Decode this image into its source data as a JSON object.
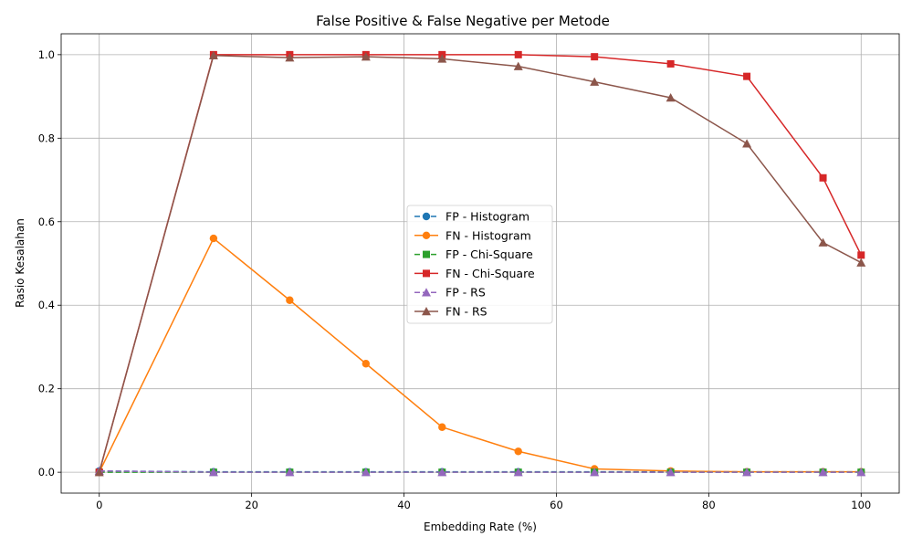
{
  "chart_data": {
    "type": "line",
    "title": "False Positive & False Negative per Metode",
    "xlabel": "Embedding Rate (%)",
    "ylabel": "Rasio Kesalahan",
    "xlim": [
      -5,
      105
    ],
    "ylim": [
      -0.05,
      1.05
    ],
    "xticks": [
      0,
      20,
      40,
      60,
      80,
      100
    ],
    "yticks": [
      0.0,
      0.2,
      0.4,
      0.6,
      0.8,
      1.0
    ],
    "xtick_labels": [
      "0",
      "20",
      "40",
      "60",
      "80",
      "100"
    ],
    "ytick_labels": [
      "0.0",
      "0.2",
      "0.4",
      "0.6",
      "0.8",
      "1.0"
    ],
    "grid": true,
    "legend_position": "center-right",
    "x": [
      0,
      15,
      25,
      35,
      45,
      55,
      65,
      75,
      85,
      95,
      100
    ],
    "series": [
      {
        "name": "FP - Histogram",
        "color": "#1f77b4",
        "marker": "circle",
        "dashed": true,
        "values": [
          0.003,
          0.001,
          0.001,
          0.001,
          0.001,
          0.001,
          0.001,
          0.001,
          0.001,
          0.001,
          0.001
        ]
      },
      {
        "name": "FN - Histogram",
        "color": "#ff7f0e",
        "marker": "circle",
        "dashed": false,
        "values": [
          0.0,
          0.56,
          0.412,
          0.26,
          0.108,
          0.05,
          0.008,
          0.003,
          0.001,
          0.001,
          0.001
        ]
      },
      {
        "name": "FP - Chi-Square",
        "color": "#2ca02c",
        "marker": "square",
        "dashed": true,
        "values": [
          0.0,
          0.0,
          0.0,
          0.0,
          0.0,
          0.0,
          0.0,
          0.0,
          0.0,
          0.0,
          0.0
        ]
      },
      {
        "name": "FN - Chi-Square",
        "color": "#d62728",
        "marker": "square",
        "dashed": false,
        "values": [
          0.0,
          1.0,
          1.0,
          1.0,
          1.0,
          1.0,
          0.995,
          0.978,
          0.948,
          0.705,
          0.52
        ]
      },
      {
        "name": "FP - RS",
        "color": "#9467bd",
        "marker": "triangle",
        "dashed": true,
        "values": [
          0.003,
          0.0,
          0.0,
          0.0,
          0.0,
          0.0,
          0.0,
          0.0,
          0.0,
          0.0,
          0.0
        ]
      },
      {
        "name": "FN - RS",
        "color": "#8c564b",
        "marker": "triangle",
        "dashed": false,
        "values": [
          0.0,
          0.998,
          0.993,
          0.995,
          0.99,
          0.972,
          0.935,
          0.897,
          0.787,
          0.55,
          0.502
        ]
      }
    ]
  }
}
